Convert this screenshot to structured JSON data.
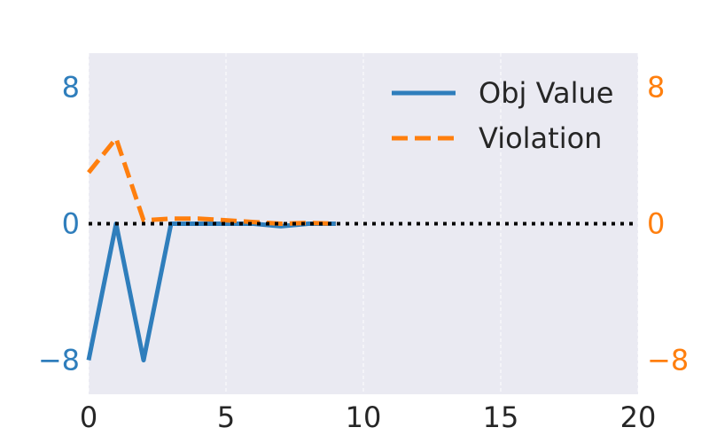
{
  "chart_data": {
    "type": "line",
    "x": [
      0,
      1,
      2,
      3,
      4,
      5,
      6,
      7,
      8,
      9
    ],
    "series": [
      {
        "name": "Obj Value",
        "axis": "left",
        "color": "#2f7ebc",
        "style": "solid",
        "values": [
          -8,
          0,
          -8,
          0,
          0,
          0,
          0,
          -0.15,
          0,
          0
        ]
      },
      {
        "name": "Violation",
        "axis": "right",
        "color": "#ff7f0e",
        "style": "dashed",
        "values": [
          3,
          5,
          0.2,
          0.3,
          0.3,
          0.2,
          0.1,
          0,
          0.05,
          0
        ]
      }
    ],
    "xlim": [
      0,
      20
    ],
    "xticks": [
      "0",
      "5",
      "10",
      "15",
      "20"
    ],
    "ylim_left": [
      -10,
      10
    ],
    "ylim_right": [
      -10,
      10
    ],
    "yticks_left": [
      "−8",
      "0",
      "8"
    ],
    "yticks_right": [
      "−8",
      "0",
      "8"
    ],
    "ytick_values": [
      -8,
      0,
      8
    ],
    "left_axis_color": "#2f7ebc",
    "right_axis_color": "#ff7f0e",
    "reference_line": {
      "y": 0,
      "style": "dotted",
      "color": "#000000"
    },
    "grid": "vertical",
    "legend": "top-right",
    "background": "#eaeaf2"
  }
}
